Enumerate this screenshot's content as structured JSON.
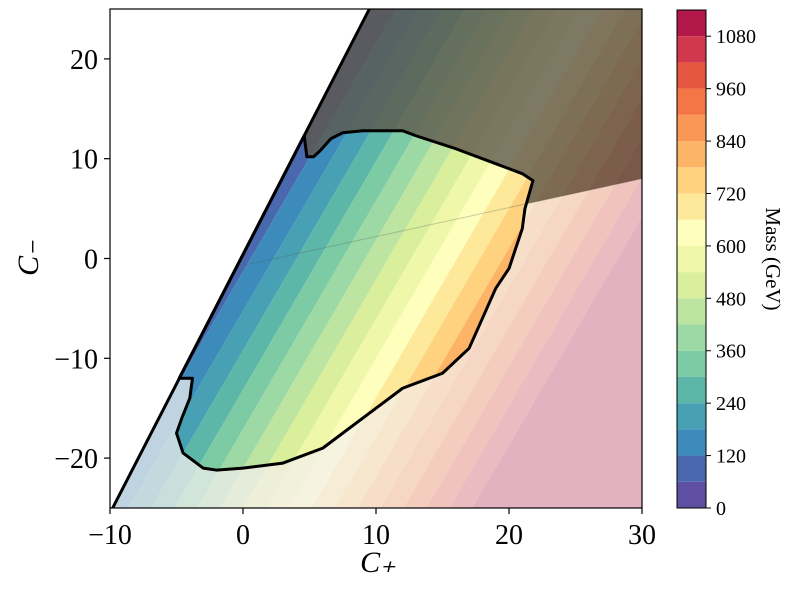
{
  "chart_data": {
    "type": "contourf",
    "xlabel": "C₊",
    "ylabel": "C₋",
    "colorbar_label": "Mass (GeV)",
    "xlim": [
      -10,
      30
    ],
    "ylim": [
      -25,
      25
    ],
    "xticks": [
      {
        "value": -10,
        "label": "−10"
      },
      0,
      10,
      20,
      30
    ],
    "yticks": [
      {
        "value": -20,
        "label": "−20"
      },
      {
        "value": -10,
        "label": "−10"
      },
      0,
      10,
      20
    ],
    "clim": [
      0,
      1140
    ],
    "cticks": [
      0,
      120,
      240,
      360,
      480,
      600,
      720,
      840,
      960,
      1080
    ],
    "levels": [
      0,
      60,
      120,
      180,
      240,
      300,
      360,
      420,
      480,
      540,
      600,
      660,
      720,
      780,
      840,
      900,
      960,
      1020,
      1080,
      1140
    ],
    "colors": [
      "#5e4fa2",
      "#4a68ae",
      "#3c8bba",
      "#47a0b3",
      "#5db7a9",
      "#7ccba5",
      "#9dd9a4",
      "#bde4a0",
      "#d9ef9b",
      "#eef8a8",
      "#fefebd",
      "#fee99a",
      "#fed27f",
      "#fdb466",
      "#fa9656",
      "#f47646",
      "#e4563f",
      "#cf384d",
      "#b3184a"
    ],
    "boundary": {
      "x": [
        -9.8,
        9.5
      ],
      "y": [
        -25,
        25
      ]
    },
    "divider": {
      "x": [
        0,
        30
      ],
      "y": [
        -0.7,
        8
      ]
    },
    "excluded_region": {
      "x": [
        -4.8,
        4.6,
        4.8,
        5.3,
        5.8,
        6.6,
        7.5,
        9,
        12,
        13,
        16,
        19,
        21,
        21.8,
        21.2,
        21,
        20,
        19,
        17,
        15,
        12,
        10,
        6,
        3,
        0,
        -2,
        -3,
        -4.5,
        -5,
        -4.6,
        -4,
        -3.8,
        -4.8
      ],
      "y": [
        -12,
        12.3,
        10.2,
        10.2,
        10.8,
        12,
        12.6,
        12.8,
        12.8,
        12.3,
        11,
        9.5,
        8.5,
        7.8,
        5,
        3,
        -1,
        -3,
        -9,
        -11.5,
        -13,
        -15,
        -19,
        -20.5,
        -21,
        -21.2,
        -21,
        -19.5,
        -17.5,
        -16,
        -14,
        -12,
        -12
      ]
    }
  }
}
